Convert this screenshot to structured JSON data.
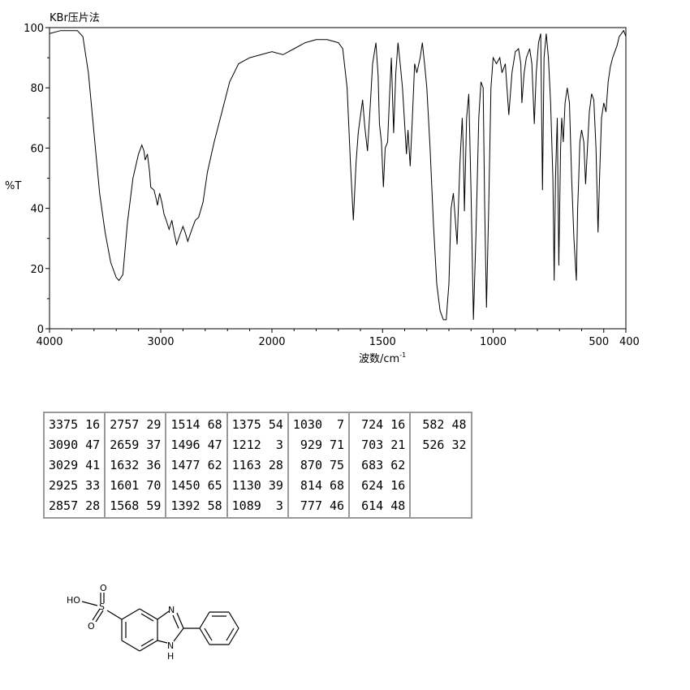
{
  "chart_data": {
    "type": "line",
    "title": "KBr压片法",
    "xlabel": "波数/cm",
    "xlabel_superscript": "-1",
    "ylabel": "%T",
    "xlim": [
      4000,
      400
    ],
    "ylim": [
      0,
      100
    ],
    "x_ticks": [
      4000,
      3000,
      2000,
      1500,
      1000,
      500,
      400
    ],
    "x_tick_labels": [
      "4000",
      "3000",
      "2000",
      "1500",
      "1000",
      "500",
      "400"
    ],
    "y_ticks": [
      0,
      20,
      40,
      60,
      80,
      100
    ],
    "y_tick_labels": [
      "0",
      "20",
      "40",
      "60",
      "80",
      "100"
    ],
    "grid": false,
    "series": [
      {
        "points": [
          [
            4000,
            98
          ],
          [
            3900,
            99
          ],
          [
            3750,
            99
          ],
          [
            3700,
            97
          ],
          [
            3650,
            85
          ],
          [
            3600,
            65
          ],
          [
            3550,
            45
          ],
          [
            3500,
            32
          ],
          [
            3450,
            22
          ],
          [
            3400,
            17
          ],
          [
            3375,
            16
          ],
          [
            3340,
            18
          ],
          [
            3300,
            35
          ],
          [
            3250,
            50
          ],
          [
            3200,
            58
          ],
          [
            3170,
            61
          ],
          [
            3150,
            59
          ],
          [
            3140,
            56
          ],
          [
            3120,
            58
          ],
          [
            3100,
            52
          ],
          [
            3090,
            47
          ],
          [
            3060,
            46
          ],
          [
            3040,
            43
          ],
          [
            3029,
            41
          ],
          [
            3010,
            45
          ],
          [
            2990,
            42
          ],
          [
            2970,
            38
          ],
          [
            2950,
            36
          ],
          [
            2925,
            33
          ],
          [
            2900,
            36
          ],
          [
            2880,
            32
          ],
          [
            2857,
            28
          ],
          [
            2830,
            31
          ],
          [
            2800,
            34
          ],
          [
            2780,
            32
          ],
          [
            2757,
            29
          ],
          [
            2720,
            33
          ],
          [
            2690,
            36
          ],
          [
            2659,
            37
          ],
          [
            2620,
            42
          ],
          [
            2580,
            52
          ],
          [
            2520,
            62
          ],
          [
            2450,
            72
          ],
          [
            2380,
            82
          ],
          [
            2300,
            88
          ],
          [
            2200,
            90
          ],
          [
            2100,
            91
          ],
          [
            2000,
            92
          ],
          [
            1950,
            91
          ],
          [
            1900,
            93
          ],
          [
            1850,
            95
          ],
          [
            1800,
            96
          ],
          [
            1750,
            96
          ],
          [
            1700,
            95
          ],
          [
            1680,
            93
          ],
          [
            1660,
            80
          ],
          [
            1645,
            55
          ],
          [
            1632,
            36
          ],
          [
            1620,
            55
          ],
          [
            1610,
            65
          ],
          [
            1601,
            70
          ],
          [
            1590,
            76
          ],
          [
            1580,
            67
          ],
          [
            1568,
            59
          ],
          [
            1555,
            75
          ],
          [
            1545,
            88
          ],
          [
            1530,
            95
          ],
          [
            1520,
            84
          ],
          [
            1514,
            68
          ],
          [
            1505,
            62
          ],
          [
            1496,
            47
          ],
          [
            1488,
            60
          ],
          [
            1477,
            62
          ],
          [
            1468,
            78
          ],
          [
            1460,
            90
          ],
          [
            1450,
            65
          ],
          [
            1440,
            85
          ],
          [
            1430,
            95
          ],
          [
            1420,
            88
          ],
          [
            1410,
            80
          ],
          [
            1400,
            68
          ],
          [
            1392,
            58
          ],
          [
            1385,
            66
          ],
          [
            1375,
            54
          ],
          [
            1365,
            70
          ],
          [
            1355,
            88
          ],
          [
            1345,
            85
          ],
          [
            1330,
            90
          ],
          [
            1320,
            95
          ],
          [
            1310,
            88
          ],
          [
            1300,
            80
          ],
          [
            1285,
            60
          ],
          [
            1270,
            35
          ],
          [
            1255,
            15
          ],
          [
            1240,
            6
          ],
          [
            1225,
            3
          ],
          [
            1212,
            3
          ],
          [
            1200,
            15
          ],
          [
            1190,
            40
          ],
          [
            1180,
            45
          ],
          [
            1170,
            35
          ],
          [
            1163,
            28
          ],
          [
            1150,
            55
          ],
          [
            1140,
            70
          ],
          [
            1135,
            60
          ],
          [
            1130,
            39
          ],
          [
            1120,
            70
          ],
          [
            1110,
            78
          ],
          [
            1100,
            45
          ],
          [
            1089,
            3
          ],
          [
            1078,
            30
          ],
          [
            1065,
            70
          ],
          [
            1055,
            82
          ],
          [
            1045,
            80
          ],
          [
            1038,
            40
          ],
          [
            1030,
            7
          ],
          [
            1020,
            40
          ],
          [
            1010,
            80
          ],
          [
            1000,
            90
          ],
          [
            985,
            88
          ],
          [
            970,
            90
          ],
          [
            960,
            85
          ],
          [
            945,
            88
          ],
          [
            929,
            71
          ],
          [
            915,
            85
          ],
          [
            900,
            92
          ],
          [
            885,
            93
          ],
          [
            875,
            88
          ],
          [
            870,
            75
          ],
          [
            860,
            85
          ],
          [
            850,
            90
          ],
          [
            835,
            93
          ],
          [
            825,
            88
          ],
          [
            814,
            68
          ],
          [
            805,
            85
          ],
          [
            795,
            95
          ],
          [
            785,
            98
          ],
          [
            777,
            46
          ],
          [
            770,
            90
          ],
          [
            760,
            98
          ],
          [
            750,
            90
          ],
          [
            740,
            75
          ],
          [
            730,
            50
          ],
          [
            724,
            16
          ],
          [
            718,
            50
          ],
          [
            710,
            70
          ],
          [
            703,
            21
          ],
          [
            695,
            60
          ],
          [
            690,
            70
          ],
          [
            683,
            62
          ],
          [
            675,
            75
          ],
          [
            665,
            80
          ],
          [
            655,
            75
          ],
          [
            645,
            50
          ],
          [
            635,
            30
          ],
          [
            624,
            16
          ],
          [
            618,
            40
          ],
          [
            614,
            48
          ],
          [
            608,
            62
          ],
          [
            600,
            66
          ],
          [
            590,
            62
          ],
          [
            582,
            48
          ],
          [
            575,
            58
          ],
          [
            565,
            72
          ],
          [
            555,
            78
          ],
          [
            545,
            76
          ],
          [
            535,
            60
          ],
          [
            526,
            32
          ],
          [
            518,
            52
          ],
          [
            510,
            70
          ],
          [
            500,
            75
          ],
          [
            490,
            72
          ],
          [
            480,
            82
          ],
          [
            470,
            87
          ],
          [
            460,
            90
          ],
          [
            450,
            92
          ],
          [
            440,
            94
          ],
          [
            430,
            97
          ],
          [
            420,
            98
          ],
          [
            410,
            99
          ],
          [
            400,
            97
          ]
        ]
      }
    ]
  },
  "peak_table": {
    "columns": [
      [
        [
          "3375",
          "16"
        ],
        [
          "3090",
          "47"
        ],
        [
          "3029",
          "41"
        ],
        [
          "2925",
          "33"
        ],
        [
          "2857",
          "28"
        ]
      ],
      [
        [
          "2757",
          "29"
        ],
        [
          "2659",
          "37"
        ],
        [
          "1632",
          "36"
        ],
        [
          "1601",
          "70"
        ],
        [
          "1568",
          "59"
        ]
      ],
      [
        [
          "1514",
          "68"
        ],
        [
          "1496",
          "47"
        ],
        [
          "1477",
          "62"
        ],
        [
          "1450",
          "65"
        ],
        [
          "1392",
          "58"
        ]
      ],
      [
        [
          "1375",
          "54"
        ],
        [
          "1212",
          "3"
        ],
        [
          "1163",
          "28"
        ],
        [
          "1130",
          "39"
        ],
        [
          "1089",
          "3"
        ]
      ],
      [
        [
          "1030",
          "7"
        ],
        [
          "929",
          "71"
        ],
        [
          "870",
          "75"
        ],
        [
          "814",
          "68"
        ],
        [
          "777",
          "46"
        ]
      ],
      [
        [
          "724",
          "16"
        ],
        [
          "703",
          "21"
        ],
        [
          "683",
          "62"
        ],
        [
          "624",
          "16"
        ],
        [
          "614",
          "48"
        ]
      ],
      [
        [
          "582",
          "48"
        ],
        [
          "526",
          "32"
        ]
      ]
    ]
  },
  "structure": {
    "label_oh": "HO",
    "label_s": "S",
    "label_o1": "O",
    "label_o2": "O",
    "label_n": "N",
    "label_nh_n": "N",
    "label_nh_h": "H"
  }
}
